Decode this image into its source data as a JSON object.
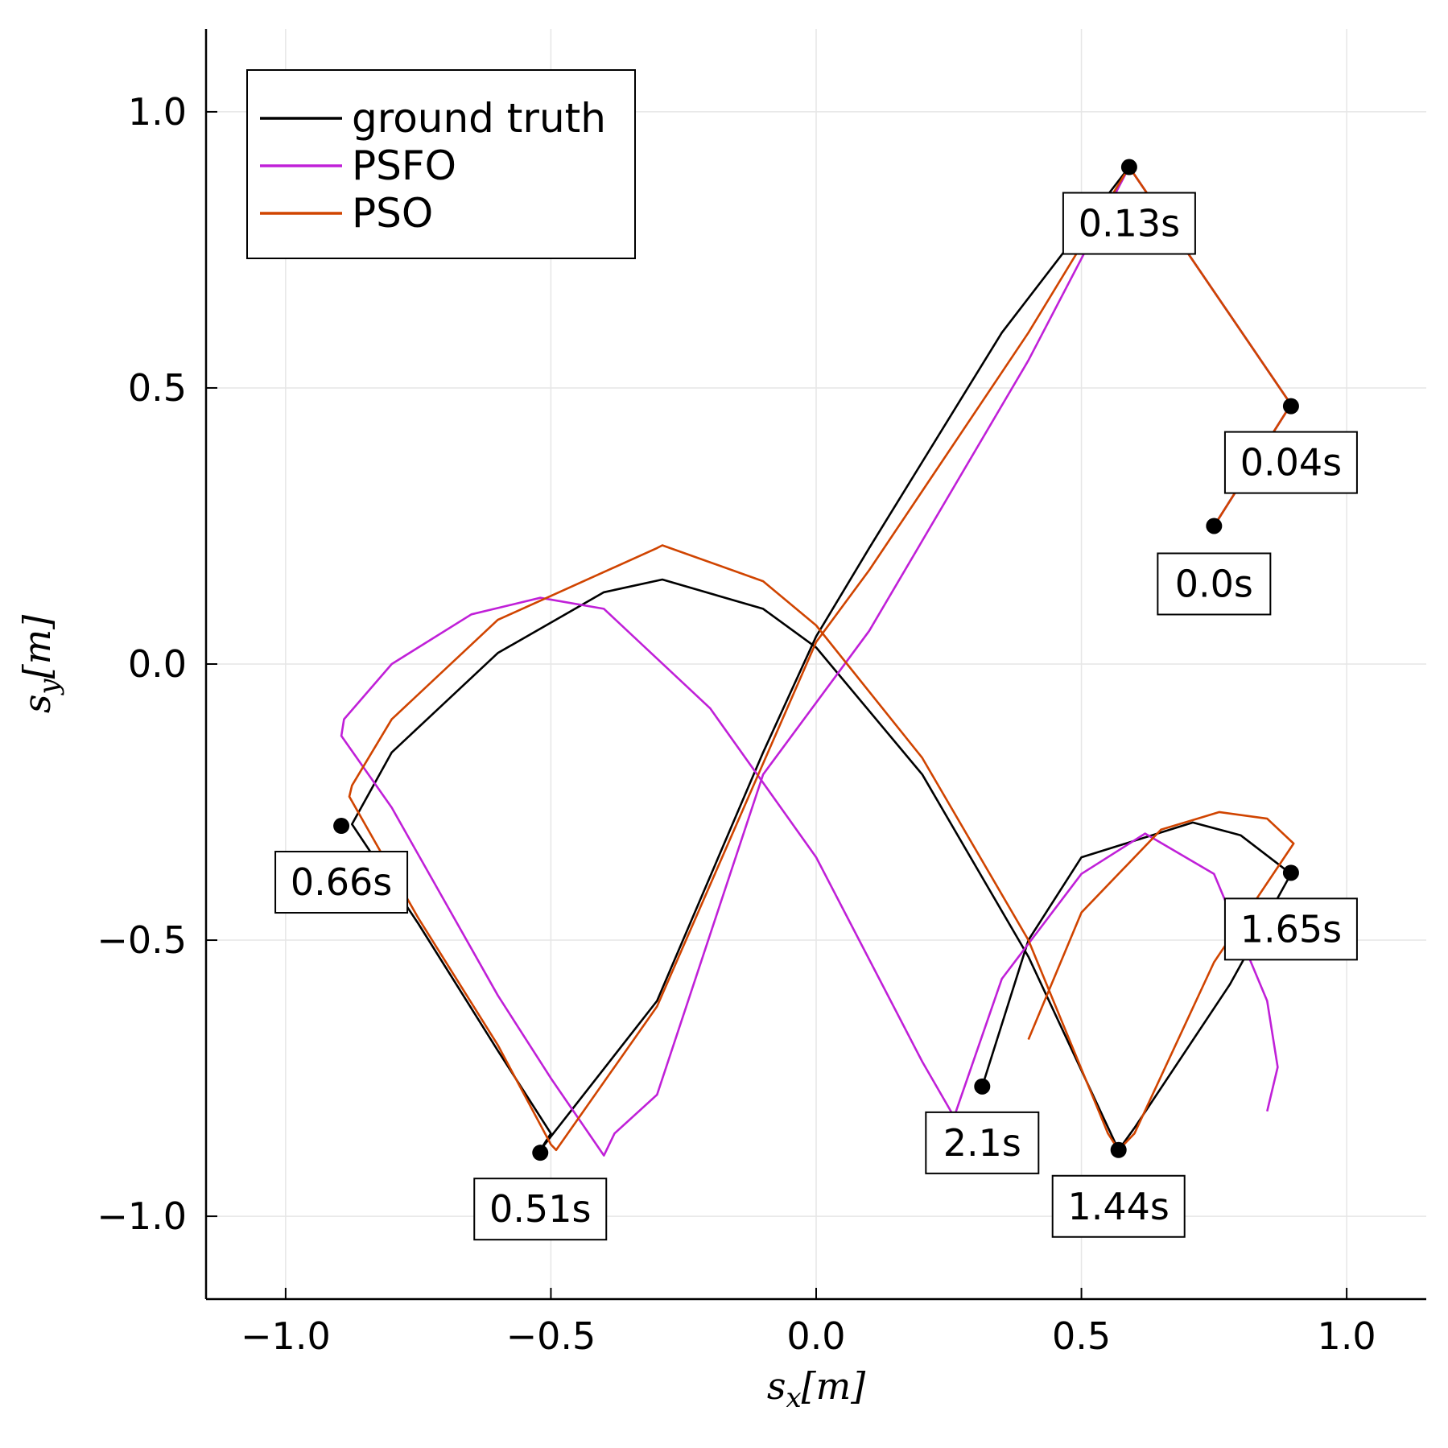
{
  "chart_data": {
    "type": "line",
    "title": "",
    "xlabel": "s_x[m]",
    "ylabel": "s_y[m]",
    "xlim": [
      -1.15,
      1.15
    ],
    "ylim": [
      -1.15,
      1.15
    ],
    "xticks": [
      -1.0,
      -0.5,
      0.0,
      0.5,
      1.0
    ],
    "yticks": [
      -1.0,
      -0.5,
      0.0,
      0.5,
      1.0
    ],
    "xtick_labels": [
      "−1.0",
      "−0.5",
      "0.0",
      "0.5",
      "1.0"
    ],
    "ytick_labels": [
      "−1.0",
      "−0.5",
      "0.0",
      "0.5",
      "1.0"
    ],
    "grid": true,
    "legend_position": "top-left",
    "series": [
      {
        "name": "ground truth",
        "color": "#000000",
        "x": [
          0.75,
          0.895,
          0.59,
          0.35,
          0.1,
          0.0,
          -0.1,
          -0.3,
          -0.52,
          -0.5,
          -0.6,
          -0.75,
          -0.875,
          -0.8,
          -0.6,
          -0.4,
          -0.29,
          -0.1,
          0.0,
          0.2,
          0.4,
          0.57,
          0.6,
          0.78,
          0.895,
          0.8,
          0.71,
          0.5,
          0.4,
          0.313
        ],
        "y": [
          0.25,
          0.47,
          0.9,
          0.6,
          0.21,
          0.05,
          -0.16,
          -0.61,
          -0.88,
          -0.85,
          -0.7,
          -0.47,
          -0.29,
          -0.16,
          0.02,
          0.13,
          0.153,
          0.1,
          0.03,
          -0.2,
          -0.53,
          -0.88,
          -0.84,
          -0.58,
          -0.38,
          -0.31,
          -0.287,
          -0.35,
          -0.5,
          -0.765
        ]
      },
      {
        "name": "PSFO",
        "color": "#c020d8",
        "x": [
          0.75,
          0.895,
          0.59,
          0.4,
          0.1,
          -0.1,
          -0.3,
          -0.38,
          -0.4,
          -0.5,
          -0.6,
          -0.7,
          -0.8,
          -0.895,
          -0.89,
          -0.8,
          -0.65,
          -0.52,
          -0.4,
          -0.2,
          0.0,
          0.2,
          0.26,
          0.35,
          0.5,
          0.62,
          0.75,
          0.85,
          0.87,
          0.85
        ],
        "y": [
          0.25,
          0.47,
          0.9,
          0.55,
          0.06,
          -0.2,
          -0.78,
          -0.85,
          -0.89,
          -0.75,
          -0.6,
          -0.43,
          -0.26,
          -0.13,
          -0.1,
          0.0,
          0.09,
          0.12,
          0.1,
          -0.08,
          -0.35,
          -0.72,
          -0.82,
          -0.57,
          -0.38,
          -0.307,
          -0.38,
          -0.61,
          -0.73,
          -0.81
        ]
      },
      {
        "name": "PSO",
        "color": "#d04400",
        "x": [
          0.75,
          0.895,
          0.59,
          0.4,
          0.1,
          0.0,
          -0.1,
          -0.3,
          -0.49,
          -0.5,
          -0.6,
          -0.75,
          -0.88,
          -0.875,
          -0.8,
          -0.6,
          -0.3,
          -0.29,
          -0.1,
          0.0,
          0.2,
          0.4,
          0.55,
          0.57,
          0.6,
          0.75,
          0.9,
          0.85,
          0.76,
          0.65,
          0.5,
          0.4
        ],
        "y": [
          0.25,
          0.47,
          0.9,
          0.6,
          0.17,
          0.04,
          -0.18,
          -0.62,
          -0.88,
          -0.87,
          -0.69,
          -0.46,
          -0.24,
          -0.22,
          -0.1,
          0.08,
          0.21,
          0.215,
          0.15,
          0.07,
          -0.17,
          -0.5,
          -0.85,
          -0.88,
          -0.85,
          -0.54,
          -0.325,
          -0.28,
          -0.268,
          -0.3,
          -0.45,
          -0.68
        ]
      }
    ],
    "markers": [
      {
        "x": 0.75,
        "y": 0.25,
        "label": "0.0s"
      },
      {
        "x": 0.895,
        "y": 0.467,
        "label": "0.04s"
      },
      {
        "x": 0.59,
        "y": 0.9,
        "label": "0.13s"
      },
      {
        "x": -0.52,
        "y": -0.885,
        "label": "0.51s"
      },
      {
        "x": -0.895,
        "y": -0.293,
        "label": "0.66s"
      },
      {
        "x": 0.57,
        "y": -0.88,
        "label": "1.44s"
      },
      {
        "x": 0.895,
        "y": -0.378,
        "label": "1.65s"
      },
      {
        "x": 0.313,
        "y": -0.765,
        "label": "2.1s"
      }
    ],
    "annotations_offset_note": "",
    "legend": [
      "ground truth",
      "PSFO",
      "PSO"
    ]
  }
}
